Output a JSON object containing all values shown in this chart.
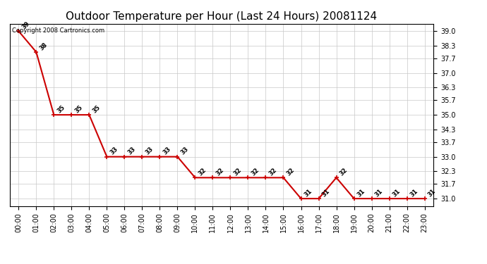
{
  "title": "Outdoor Temperature per Hour (Last 24 Hours) 20081124",
  "copyright_text": "Copyright 2008 Cartronics.com",
  "hours": [
    "00:00",
    "01:00",
    "02:00",
    "03:00",
    "04:00",
    "05:00",
    "06:00",
    "07:00",
    "08:00",
    "09:00",
    "10:00",
    "11:00",
    "12:00",
    "13:00",
    "14:00",
    "15:00",
    "16:00",
    "17:00",
    "18:00",
    "19:00",
    "20:00",
    "21:00",
    "22:00",
    "23:00"
  ],
  "temps": [
    39.0,
    38.0,
    35.0,
    35.0,
    35.0,
    33.0,
    33.0,
    33.0,
    33.0,
    33.0,
    32.0,
    32.0,
    32.0,
    32.0,
    32.0,
    32.0,
    31.0,
    31.0,
    32.0,
    31.0,
    31.0,
    31.0,
    31.0,
    31.0
  ],
  "yticks": [
    31.0,
    31.7,
    32.3,
    33.0,
    33.7,
    34.3,
    35.0,
    35.7,
    36.3,
    37.0,
    37.7,
    38.3,
    39.0
  ],
  "ylim": [
    30.65,
    39.35
  ],
  "line_color": "#cc0000",
  "marker_color": "#cc0000",
  "bg_color": "#ffffff",
  "grid_color": "#c8c8c8",
  "title_fontsize": 11,
  "label_fontsize": 7,
  "annotation_fontsize": 6,
  "copyright_fontsize": 6
}
